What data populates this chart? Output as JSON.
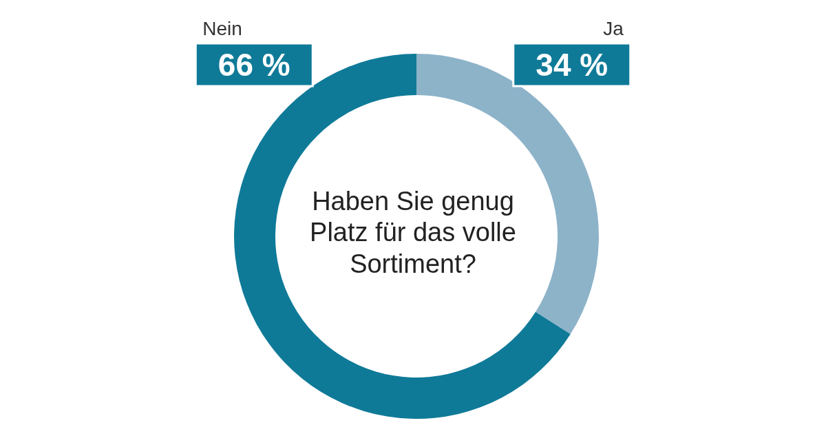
{
  "chart_data": {
    "type": "donut",
    "title": "Haben Sie genug Platz für das volle Sortiment?",
    "categories": [
      "Ja",
      "Nein"
    ],
    "values": [
      34,
      66
    ],
    "colors": [
      "#8db3c9",
      "#0f7a98"
    ],
    "value_labels": [
      "34 %",
      "66 %"
    ]
  }
}
